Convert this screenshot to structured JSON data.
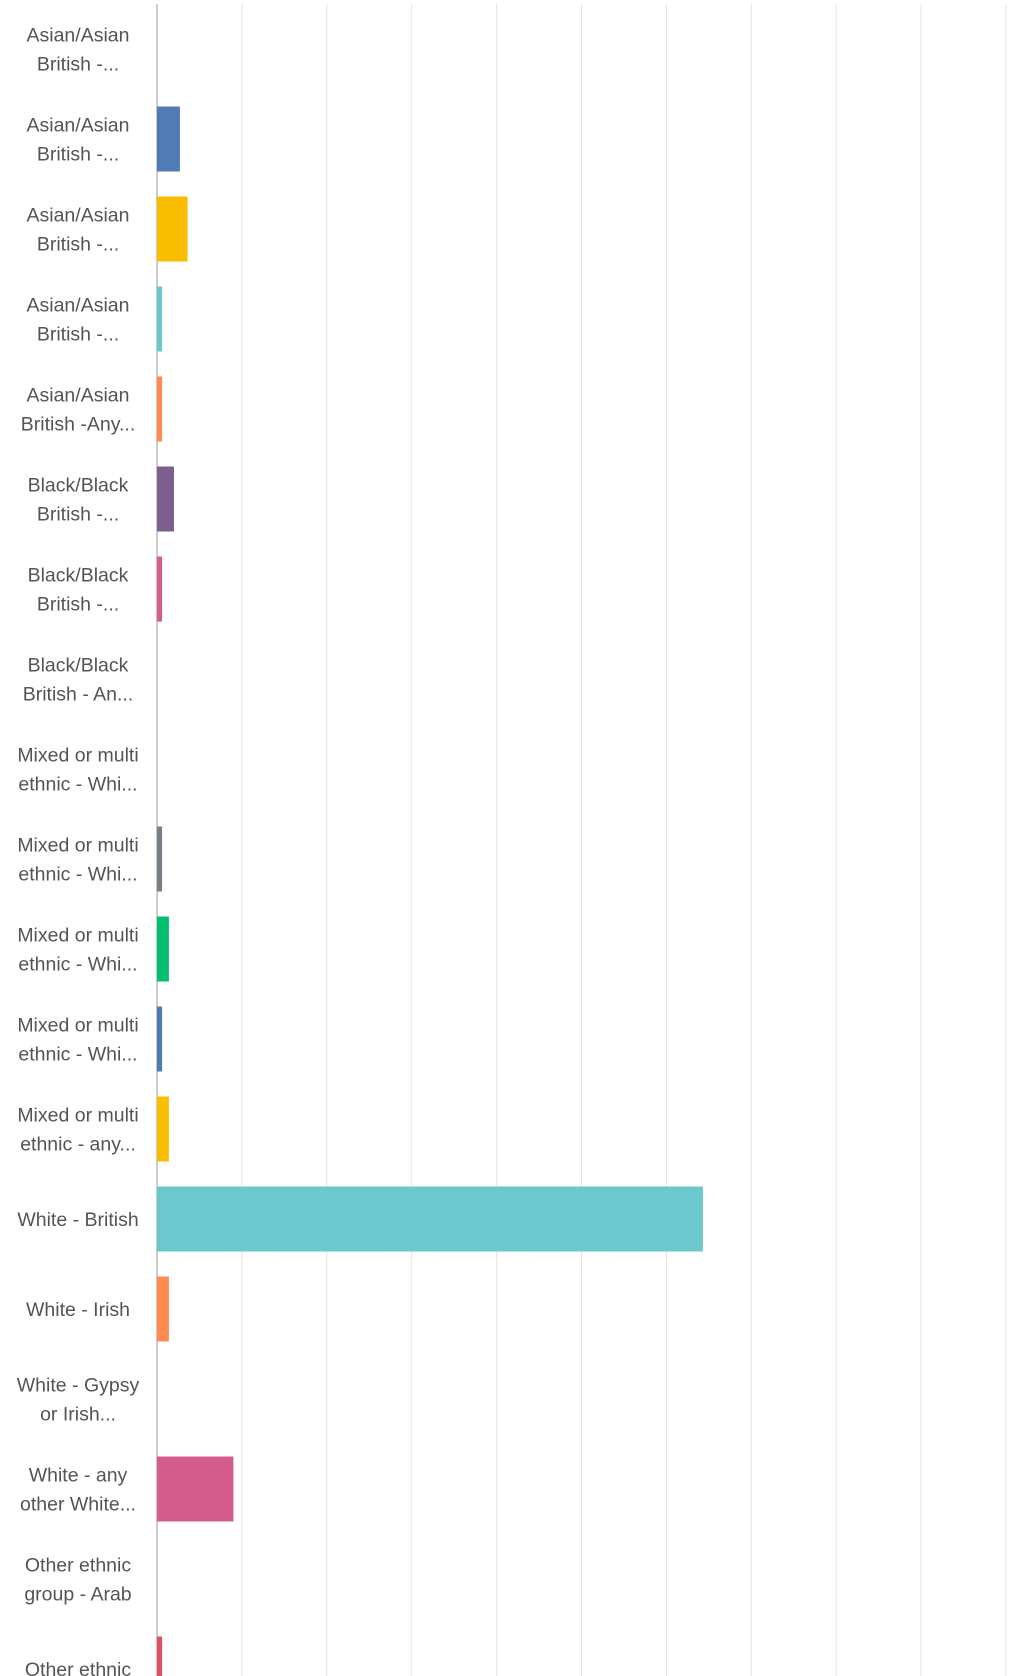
{
  "chart_data": {
    "type": "bar",
    "orientation": "horizontal",
    "xlim": [
      0,
      100
    ],
    "grid": true,
    "categories": [
      [
        "Asian/Asian",
        "British -..."
      ],
      [
        "Asian/Asian",
        "British -..."
      ],
      [
        "Asian/Asian",
        "British -..."
      ],
      [
        "Asian/Asian",
        "British -..."
      ],
      [
        "Asian/Asian",
        "British -Any..."
      ],
      [
        "Black/Black",
        "British -..."
      ],
      [
        "Black/Black",
        "British -..."
      ],
      [
        "Black/Black",
        "British - An..."
      ],
      [
        "Mixed or multi",
        "ethnic - Whi..."
      ],
      [
        "Mixed or multi",
        "ethnic - Whi..."
      ],
      [
        "Mixed or multi",
        "ethnic - Whi..."
      ],
      [
        "Mixed or multi",
        "ethnic - Whi..."
      ],
      [
        "Mixed or multi",
        "ethnic - any..."
      ],
      [
        "White - British"
      ],
      [
        "White - Irish"
      ],
      [
        "White - Gypsy",
        "or Irish..."
      ],
      [
        "White - any",
        "other White..."
      ],
      [
        "Other ethnic",
        "group - Arab"
      ],
      [
        "Other ethnic"
      ]
    ],
    "values": [
      0,
      2.7,
      3.6,
      0.6,
      0.6,
      2.0,
      0.6,
      0,
      0,
      0.6,
      1.4,
      0.6,
      1.4,
      64.3,
      1.4,
      0,
      9.0,
      0,
      0.6
    ],
    "colors": [
      "#507cb6",
      "#507cb6",
      "#f9be00",
      "#6bc8cd",
      "#ff8b4f",
      "#7d5e90",
      "#d45d8c",
      "#507cb6",
      "#507cb6",
      "#768086",
      "#00bf6f",
      "#507cb6",
      "#f9be00",
      "#6bc8cd",
      "#ff8b4f",
      "#7d5e90",
      "#d45d8c",
      "#507cb6",
      "#e05260"
    ]
  }
}
